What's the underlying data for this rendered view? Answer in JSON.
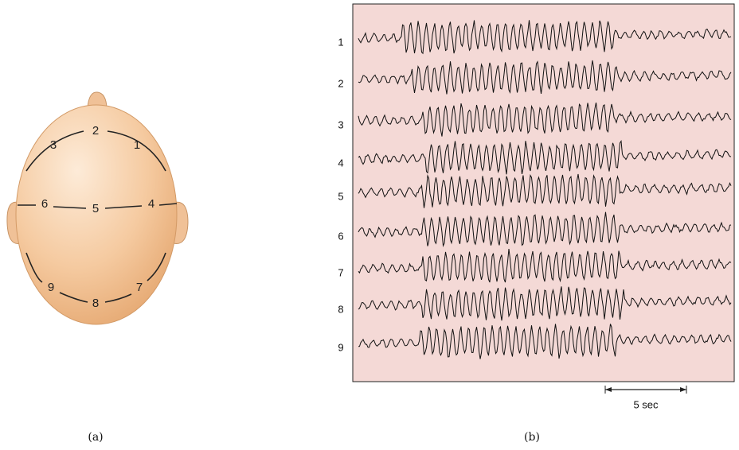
{
  "panel_a": {
    "label": "(a)",
    "electrodes": [
      "1",
      "2",
      "3",
      "4",
      "5",
      "6",
      "7",
      "8",
      "9"
    ]
  },
  "panel_b": {
    "label": "(b)",
    "channels": [
      "1",
      "2",
      "3",
      "4",
      "5",
      "6",
      "7",
      "8",
      "9"
    ],
    "scale_bar": "5 sec"
  }
}
